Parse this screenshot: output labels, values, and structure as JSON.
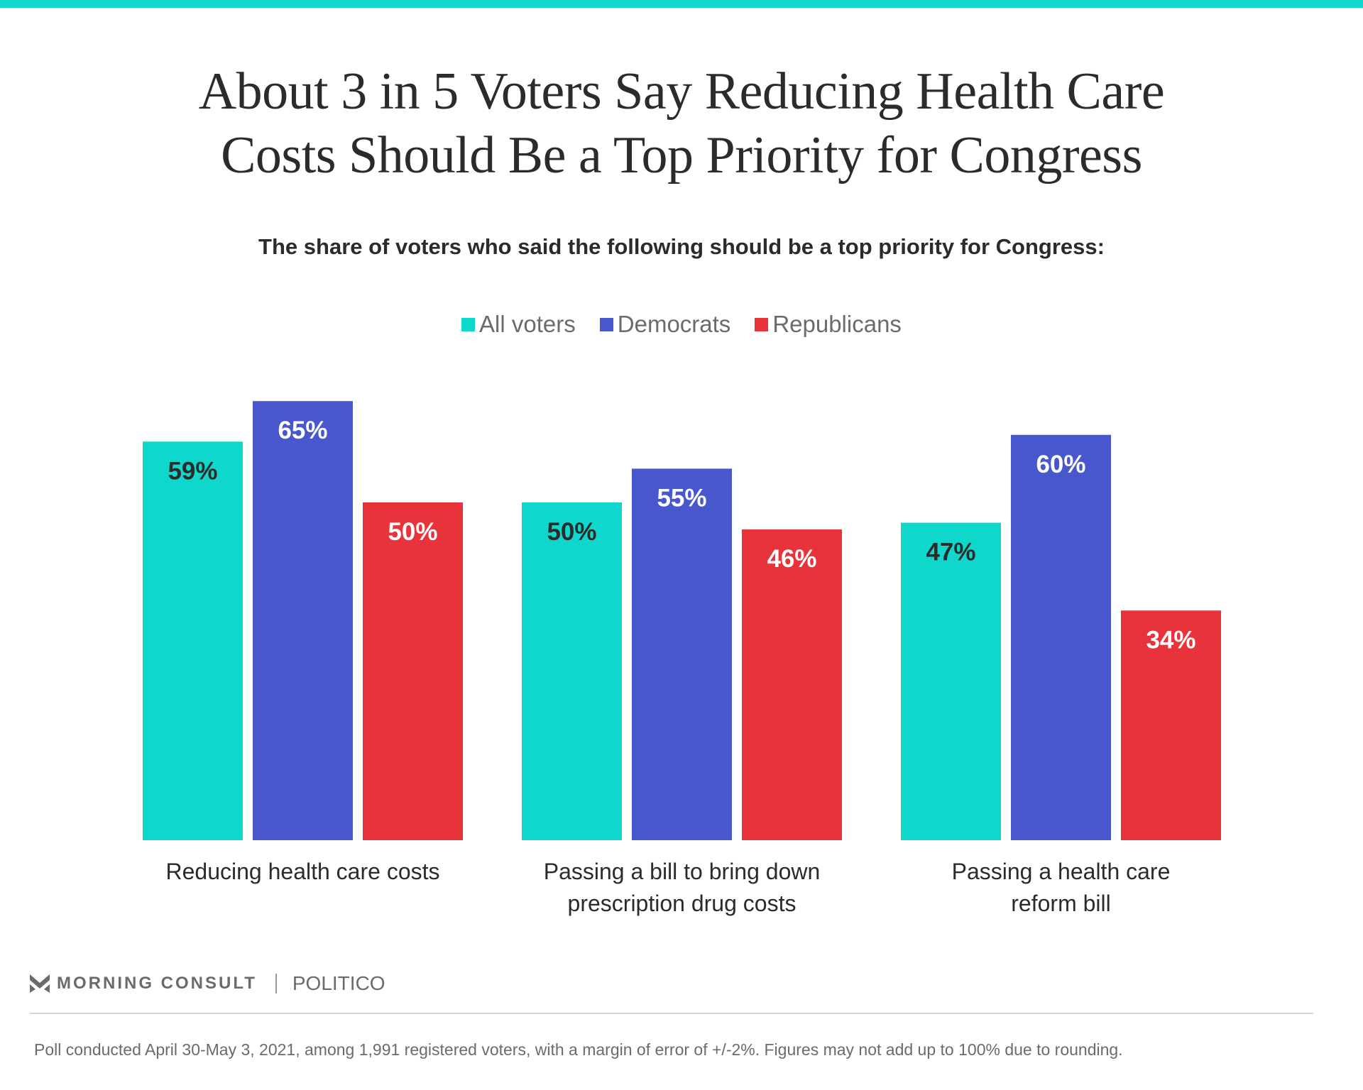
{
  "header": {
    "title_line1": "About 3 in 5 Voters Say Reducing Health Care",
    "title_line2": "Costs Should Be a Top Priority for Congress",
    "subtitle": "The share of voters who said the following should be a top priority for Congress:"
  },
  "colors": {
    "accent": "#10D7CB",
    "all_voters": "#10D7CB",
    "democrats": "#4858CC",
    "republicans": "#E8333A"
  },
  "legend": [
    {
      "label": "All voters",
      "color": "#10D7CB"
    },
    {
      "label": "Democrats",
      "color": "#4858CC"
    },
    {
      "label": "Republicans",
      "color": "#E8333A"
    }
  ],
  "chart_data": {
    "type": "bar",
    "title": "About 3 in 5 Voters Say Reducing Health Care Costs Should Be a Top Priority for Congress",
    "subtitle": "The share of voters who said the following should be a top priority for Congress:",
    "categories": [
      "Reducing health care costs",
      "Passing a bill to bring down prescription drug costs",
      "Passing a health care reform bill"
    ],
    "category_lines": [
      [
        "Reducing health care costs"
      ],
      [
        "Passing a bill to bring down",
        "prescription drug costs"
      ],
      [
        "Passing a health care",
        "reform bill"
      ]
    ],
    "series": [
      {
        "name": "All voters",
        "color": "#10D7CB",
        "label_color": "#2b2b2b",
        "values": [
          59,
          50,
          47
        ]
      },
      {
        "name": "Democrats",
        "color": "#4858CC",
        "label_color": "#ffffff",
        "values": [
          65,
          55,
          60
        ]
      },
      {
        "name": "Republicans",
        "color": "#E8333A",
        "label_color": "#ffffff",
        "values": [
          50,
          46,
          34
        ]
      }
    ],
    "value_suffix": "%",
    "xlabel": "",
    "ylabel": "",
    "ylim": [
      0,
      65
    ],
    "grid": false,
    "legend_position": "top-center"
  },
  "footer": {
    "brand": "MORNING CONSULT",
    "partner": "POLITICO",
    "note": "Poll conducted April 30-May 3, 2021, among 1,991 registered voters, with a margin of error of +/-2%. Figures may not add up to 100% due to rounding."
  }
}
